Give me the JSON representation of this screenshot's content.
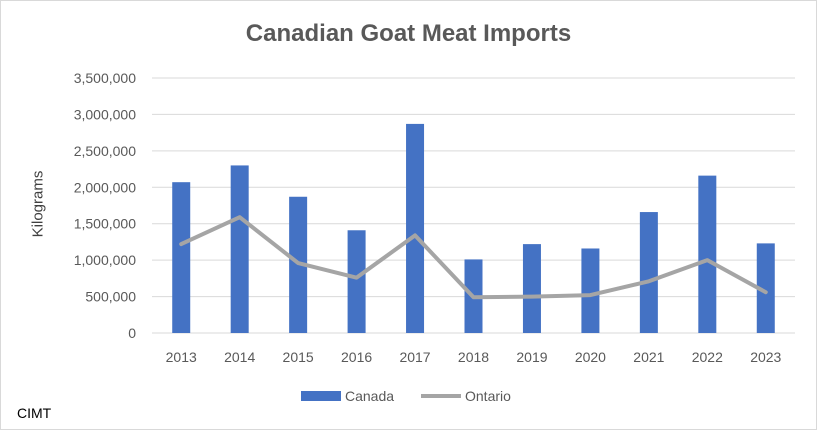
{
  "chart_data": {
    "type": "bar",
    "title": "Canadian Goat Meat Imports",
    "ylabel": "Kilograms",
    "xlabel": "",
    "categories": [
      "2013",
      "2014",
      "2015",
      "2016",
      "2017",
      "2018",
      "2019",
      "2020",
      "2021",
      "2022",
      "2023"
    ],
    "series": [
      {
        "name": "Canada",
        "type": "bar",
        "color": "#4472c4",
        "values": [
          2070000,
          2300000,
          1870000,
          1410000,
          2870000,
          1010000,
          1220000,
          1160000,
          1660000,
          2160000,
          1230000
        ]
      },
      {
        "name": "Ontario",
        "type": "line",
        "color": "#a5a5a5",
        "values": [
          1220000,
          1590000,
          960000,
          760000,
          1340000,
          490000,
          500000,
          520000,
          710000,
          1000000,
          560000
        ]
      }
    ],
    "ylim": [
      0,
      3500000
    ],
    "yticks": [
      "0",
      "500,000",
      "1,000,000",
      "1,500,000",
      "2,000,000",
      "2,500,000",
      "3,000,000",
      "3,500,000"
    ],
    "grid": true,
    "legend": "bottom"
  },
  "footer": {
    "source": "CIMT"
  }
}
